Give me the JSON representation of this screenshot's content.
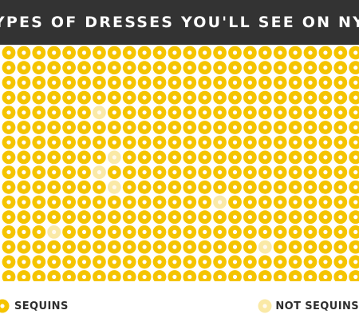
{
  "header": {
    "title": "TYPES OF DRESSES YOU'LL SEE ON NYE"
  },
  "colors": {
    "header_bg": "#333333",
    "sequin": "#f5c400",
    "sequin_center": "#ffffff",
    "not_sequin": "#fae9a6",
    "not_sequin_center": "#fffaf0"
  },
  "legend": {
    "sequins_label": "SEQUINS",
    "not_sequins_label": "NOT SEQUINS",
    "sequins_icon": "sequin-dot",
    "not_sequins_icon": "pale-dot"
  },
  "chart_data": {
    "type": "waffle",
    "rows": 16,
    "columns": 24,
    "categories": [
      "SEQUINS",
      "NOT SEQUINS"
    ],
    "not_sequin_cells": [
      {
        "row": 4,
        "col": 6
      },
      {
        "row": 7,
        "col": 7
      },
      {
        "row": 8,
        "col": 6
      },
      {
        "row": 9,
        "col": 7
      },
      {
        "row": 10,
        "col": 14
      },
      {
        "row": 12,
        "col": 3
      },
      {
        "row": 13,
        "col": 17
      }
    ]
  }
}
